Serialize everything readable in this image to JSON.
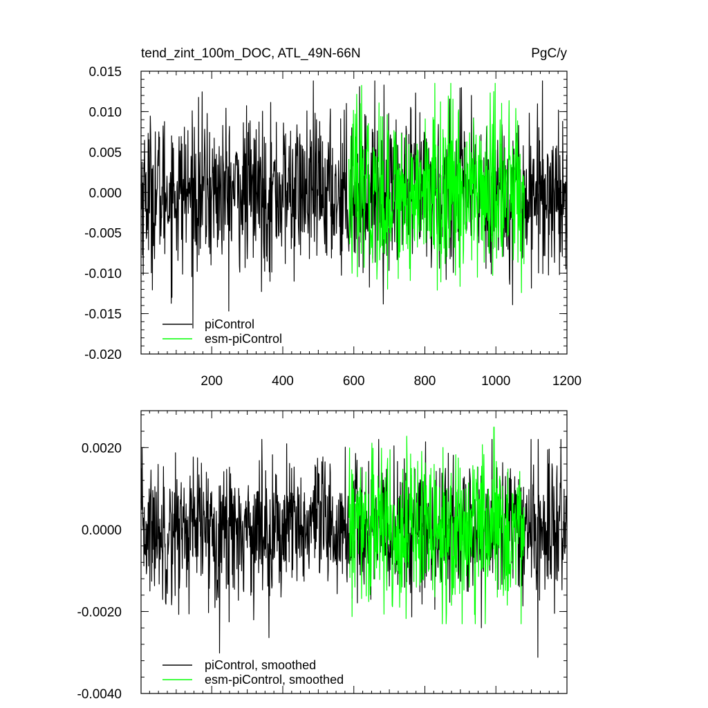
{
  "colors": {
    "piControl": "#000000",
    "esm_piControl": "#00ff00"
  },
  "chart_data": [
    {
      "type": "line",
      "title": "tend_zint_100m_DOC, ATL_49N-66N",
      "units": "PgC/y",
      "xlim": [
        1,
        1200
      ],
      "ylim": [
        -0.02,
        0.015
      ],
      "xticks": [
        200,
        400,
        600,
        800,
        1000,
        1200
      ],
      "yticks": [
        "0.015",
        "0.010",
        "0.005",
        "0.000",
        "-0.005",
        "-0.010",
        "-0.015",
        "-0.020"
      ],
      "ytick_values": [
        0.015,
        0.01,
        0.005,
        0.0,
        -0.005,
        -0.01,
        -0.015,
        -0.02
      ],
      "legend_position": "bottom-left",
      "series": [
        {
          "name": "piControl",
          "color": "#000000",
          "x_range": [
            1,
            1200
          ],
          "spread": 0.0048,
          "peak_max": 0.0138,
          "peak_min": -0.0177
        },
        {
          "name": "esm-piControl",
          "color": "#00ff00",
          "x_range": [
            586,
            1080
          ],
          "spread": 0.0052,
          "peak_max": 0.0135,
          "peak_min": -0.0124
        }
      ]
    },
    {
      "type": "line",
      "title": "",
      "units": "",
      "xlim": [
        1,
        1200
      ],
      "ylim": [
        -0.004,
        0.0029
      ],
      "xticks": [
        200,
        400,
        600,
        800,
        1000,
        1200
      ],
      "yticks": [
        "0.0020",
        "0.0000",
        "-0.0020",
        "-0.0040"
      ],
      "ytick_values": [
        0.002,
        0.0,
        -0.002,
        -0.004
      ],
      "legend_position": "bottom-left",
      "series": [
        {
          "name": "piControl, smoothed",
          "color": "#000000",
          "x_range": [
            1,
            1200
          ],
          "spread": 0.00085,
          "peak_max": 0.0022,
          "peak_min": -0.0035
        },
        {
          "name": "esm-piControl, smoothed",
          "color": "#00ff00",
          "x_range": [
            586,
            1080
          ],
          "spread": 0.00095,
          "peak_max": 0.0025,
          "peak_min": -0.0023
        }
      ]
    }
  ]
}
